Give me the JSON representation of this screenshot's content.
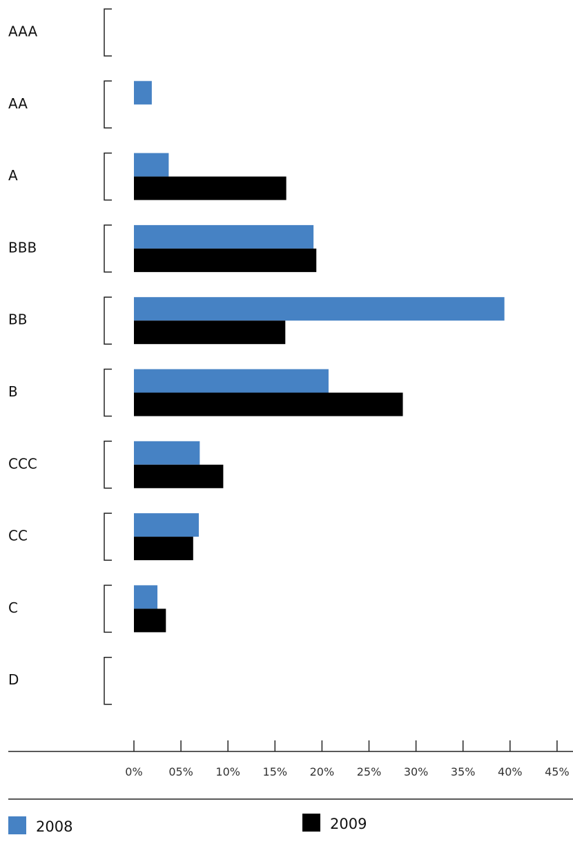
{
  "chart_data": {
    "type": "bar",
    "orientation": "horizontal",
    "categories": [
      "AAA",
      "AA",
      "A",
      "BBB",
      "BB",
      "B",
      "CCC",
      "CC",
      "C",
      "D"
    ],
    "series": [
      {
        "name": "2008",
        "color": "#4682C4",
        "values": [
          0,
          1.9,
          3.7,
          19.1,
          39.4,
          20.7,
          7.0,
          6.9,
          2.5,
          0
        ]
      },
      {
        "name": "2009",
        "color": "#000000",
        "values": [
          0,
          0,
          16.2,
          19.4,
          16.1,
          28.6,
          9.5,
          6.3,
          3.4,
          0
        ]
      }
    ],
    "x_ticks": [
      "0%",
      "05%",
      "10%",
      "15%",
      "20%",
      "25%",
      "30%",
      "35%",
      "40%",
      "45%"
    ],
    "xlim": [
      0,
      45
    ],
    "title": "",
    "xlabel": "",
    "ylabel": "",
    "legend": "bottom",
    "grid": false
  }
}
